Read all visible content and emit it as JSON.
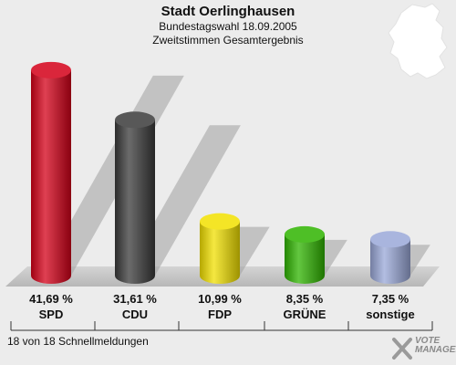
{
  "header": {
    "title": "Stadt Oerlinghausen",
    "subtitle1": "Bundestagswahl 18.09.2005",
    "subtitle2": "Zweitstimmen Gesamtergebnis"
  },
  "chart_data": {
    "type": "bar",
    "categories": [
      "SPD",
      "CDU",
      "FDP",
      "GRÜNE",
      "sonstige"
    ],
    "values": [
      41.69,
      31.61,
      10.99,
      8.35,
      7.35
    ],
    "value_labels": [
      "41,69 %",
      "31,61 %",
      "10,99 %",
      "8,35 %",
      "7,35 %"
    ],
    "colors": [
      "#d40018",
      "#3a3a3a",
      "#f2e000",
      "#2fb400",
      "#9aa8d8"
    ],
    "ylim": [
      0,
      45
    ],
    "title": "Stadt Oerlinghausen",
    "xlabel": "",
    "ylabel": ""
  },
  "footer": {
    "text": "18 von 18 Schnellmeldungen"
  },
  "logo": {
    "line1": "VOTE",
    "line2": "MANAGER",
    "icon": "vote-manager-logo"
  }
}
